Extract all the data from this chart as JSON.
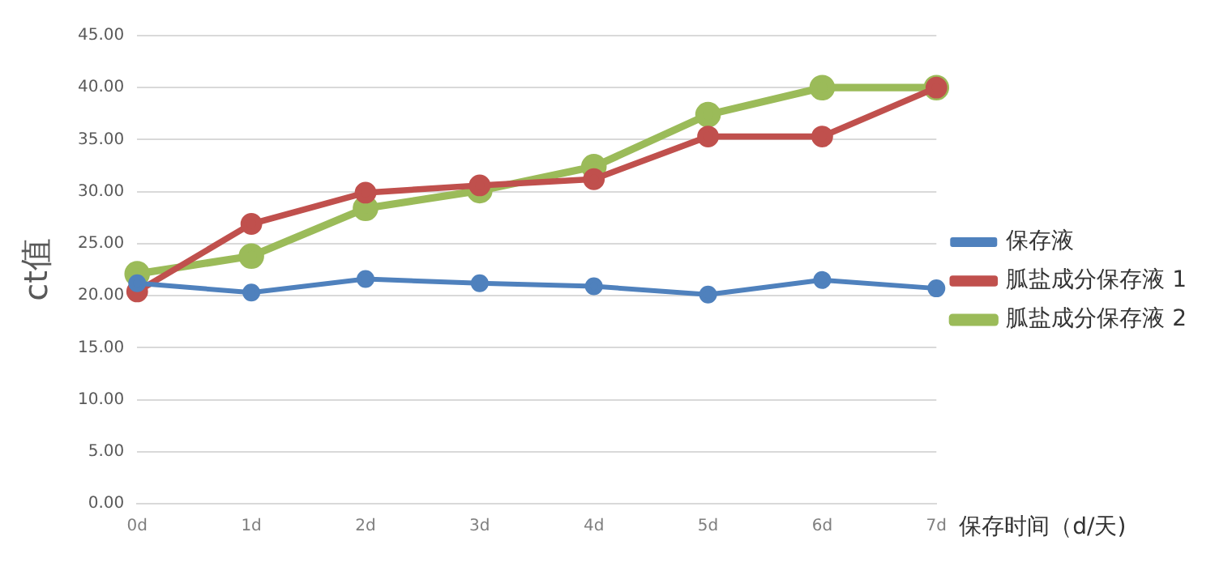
{
  "chart_data": {
    "type": "line",
    "xlabel": "保存时间（d/天)",
    "ylabel": "ct值",
    "categories": [
      "0d",
      "1d",
      "2d",
      "3d",
      "4d",
      "5d",
      "6d",
      "7d"
    ],
    "series": [
      {
        "name": "保存液",
        "color": "#4f81bd",
        "values": [
          21.2,
          20.3,
          21.6,
          21.2,
          20.9,
          20.1,
          21.5,
          20.7
        ]
      },
      {
        "name": "胍盐成分保存液 1",
        "color": "#c0504d",
        "values": [
          20.4,
          26.9,
          29.9,
          30.6,
          31.2,
          35.3,
          35.3,
          40
        ]
      },
      {
        "name": "胍盐成分保存液 2",
        "color": "#9bbb59",
        "values": [
          22.1,
          23.8,
          28.4,
          30.1,
          32.4,
          37.4,
          40,
          40
        ]
      }
    ],
    "ylim": [
      0,
      45
    ],
    "yticks": [
      {
        "value": 0,
        "label": "0.00"
      },
      {
        "value": 5,
        "label": "5.00"
      },
      {
        "value": 10,
        "label": "10.00"
      },
      {
        "value": 15,
        "label": "15.00"
      },
      {
        "value": 20,
        "label": "20.00"
      },
      {
        "value": 25,
        "label": "25.00"
      },
      {
        "value": 30,
        "label": "30.00"
      },
      {
        "value": 35,
        "label": "35.00"
      },
      {
        "value": 40,
        "label": "40.00"
      },
      {
        "value": 45,
        "label": "45.00"
      }
    ],
    "grid": "y",
    "legend": "right",
    "marker": "circle",
    "line_style": "solid"
  }
}
